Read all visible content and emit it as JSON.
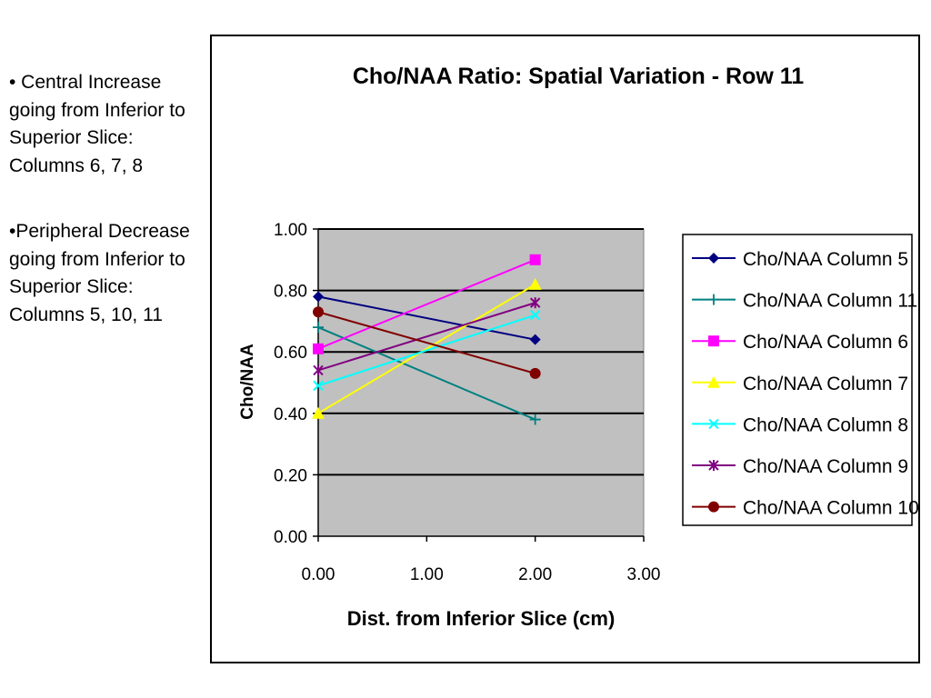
{
  "notes": [
    "• Central Increase going from Inferior to Superior Slice: Columns 6, 7, 8",
    "•Peripheral Decrease going from Inferior to Superior Slice: Columns 5, 10, 11"
  ],
  "chart_data": {
    "type": "line",
    "title": "Cho/NAA Ratio: Spatial Variation - Row 11",
    "xlabel": "Dist. from Inferior Slice (cm)",
    "ylabel": "Cho/NAA",
    "xlim": [
      0,
      3
    ],
    "ylim": [
      0,
      1
    ],
    "x_ticks": [
      "0.00",
      "1.00",
      "2.00",
      "3.00"
    ],
    "y_ticks": [
      "0.00",
      "0.20",
      "0.40",
      "0.60",
      "0.80",
      "1.00"
    ],
    "grid": "horizontal",
    "plot_background": "#c0c0c0",
    "legend_position": "right",
    "series": [
      {
        "name": "Cho/NAA Column 5",
        "x": [
          0,
          2
        ],
        "values": [
          0.78,
          0.64
        ],
        "color": "#000080",
        "marker": "diamond"
      },
      {
        "name": "Cho/NAA Column 11",
        "x": [
          0,
          2
        ],
        "values": [
          0.68,
          0.38
        ],
        "color": "#008080",
        "marker": "plus"
      },
      {
        "name": "Cho/NAA Column 6",
        "x": [
          0,
          2
        ],
        "values": [
          0.61,
          0.9
        ],
        "color": "#ff00ff",
        "marker": "square"
      },
      {
        "name": "Cho/NAA Column 7",
        "x": [
          0,
          2
        ],
        "values": [
          0.4,
          0.82
        ],
        "color": "#ffff00",
        "marker": "triangle"
      },
      {
        "name": "Cho/NAA Column 8",
        "x": [
          0,
          2
        ],
        "values": [
          0.49,
          0.72
        ],
        "color": "#00ffff",
        "marker": "x"
      },
      {
        "name": "Cho/NAA Column 9",
        "x": [
          0,
          2
        ],
        "values": [
          0.54,
          0.76
        ],
        "color": "#800080",
        "marker": "star"
      },
      {
        "name": "Cho/NAA Column 10",
        "x": [
          0,
          2
        ],
        "values": [
          0.73,
          0.53
        ],
        "color": "#800000",
        "marker": "circle"
      }
    ]
  }
}
